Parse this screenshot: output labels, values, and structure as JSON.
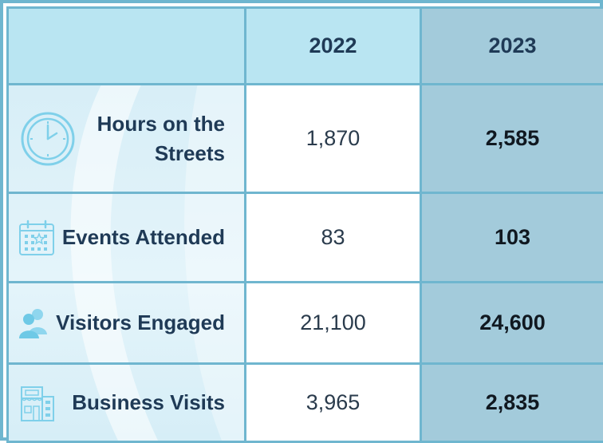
{
  "header": {
    "corner": "",
    "col_2022": "2022",
    "col_2023": "2023"
  },
  "rows": [
    {
      "label_line1": "Hours on the",
      "label_line2": "Streets",
      "icon": "clock-icon",
      "v2022": "1,870",
      "v2023": "2,585"
    },
    {
      "label": "Events Attended",
      "icon": "calendar-icon",
      "v2022": "83",
      "v2023": "103"
    },
    {
      "label": "Visitors Engaged",
      "icon": "people-icon",
      "v2022": "21,100",
      "v2023": "24,600"
    },
    {
      "label": "Business Visits",
      "icon": "storefront-icon",
      "v2022": "3,965",
      "v2023": "2,835"
    }
  ],
  "colors": {
    "border": "#6fb6cf",
    "header_light": "#b9e5f2",
    "highlight_2023": "#a3cbdb",
    "label_text": "#1f3a56",
    "icon": "#7fd0ea"
  }
}
